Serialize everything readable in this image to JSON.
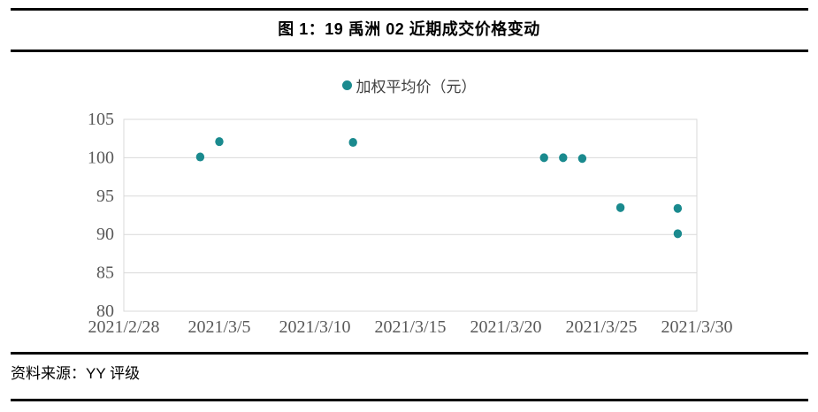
{
  "figure": {
    "title": "图 1：19 禹洲 02 近期成交价格变动",
    "source": "资料来源：YY 评级"
  },
  "chart_data": {
    "type": "scatter",
    "title": "19 禹洲 02 近期成交价格变动",
    "legend": "加权平均价（元）",
    "legend_position": "top-center",
    "grid": "horizontal",
    "xlim": [
      "2021/2/28",
      "2021/3/30"
    ],
    "ylim": [
      80,
      105
    ],
    "xticks": [
      "2021/2/28",
      "2021/3/5",
      "2021/3/10",
      "2021/3/15",
      "2021/3/20",
      "2021/3/25",
      "2021/3/30"
    ],
    "yticks": [
      80,
      85,
      90,
      95,
      100,
      105
    ],
    "series": [
      {
        "name": "加权平均价（元）",
        "points": [
          {
            "x": "2021/3/4",
            "y": 100.1
          },
          {
            "x": "2021/3/5",
            "y": 102.1
          },
          {
            "x": "2021/3/12",
            "y": 102.0
          },
          {
            "x": "2021/3/22",
            "y": 100.0
          },
          {
            "x": "2021/3/23",
            "y": 100.0
          },
          {
            "x": "2021/3/24",
            "y": 99.9
          },
          {
            "x": "2021/3/26",
            "y": 93.5
          },
          {
            "x": "2021/3/29",
            "y": 93.4
          },
          {
            "x": "2021/3/29",
            "y": 90.1
          }
        ]
      }
    ],
    "colors": {
      "marker": "#1a8a8e",
      "gridline": "#d9d9d9",
      "axis_text": "#595959",
      "rule": "#000000"
    }
  }
}
